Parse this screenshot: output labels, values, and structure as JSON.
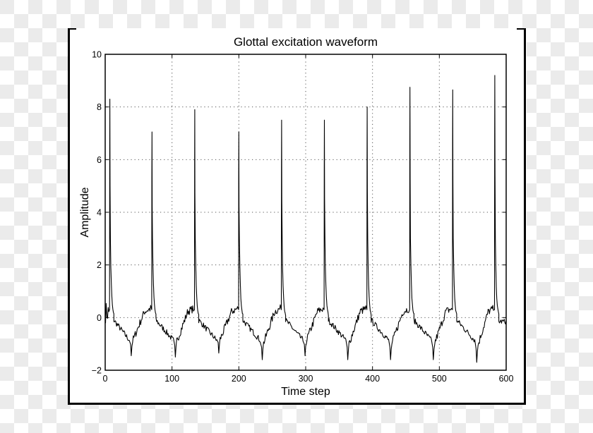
{
  "chart_data": {
    "type": "line",
    "title": "Glottal excitation waveform",
    "xlabel": "Time step",
    "ylabel": "Amplitude",
    "xlim": [
      0,
      600
    ],
    "ylim": [
      -2,
      10
    ],
    "xticks": [
      0,
      100,
      200,
      300,
      400,
      500,
      600
    ],
    "yticks": [
      -2,
      0,
      2,
      4,
      6,
      8,
      10
    ],
    "xtick_labels": [
      "0",
      "100",
      "200",
      "300",
      "400",
      "500",
      "600"
    ],
    "ytick_labels": [
      "−2",
      "0",
      "2",
      "4",
      "6",
      "8",
      "10"
    ],
    "grid": true,
    "grid_style": "dotted",
    "legend": null,
    "line_color": "#000000",
    "series": [
      {
        "name": "glottal excitation",
        "description": "Periodic pulse train: sharp positive spikes followed by decay below zero, a negative trough, then a noisy ramp back toward zero",
        "pulse_period_approx": 64,
        "peaks": [
          {
            "x": 7,
            "y": 8.3
          },
          {
            "x": 70,
            "y": 7.05
          },
          {
            "x": 134,
            "y": 7.9
          },
          {
            "x": 200,
            "y": 7.05
          },
          {
            "x": 264,
            "y": 7.5
          },
          {
            "x": 328,
            "y": 7.5
          },
          {
            "x": 392,
            "y": 8.0
          },
          {
            "x": 456,
            "y": 8.75
          },
          {
            "x": 520,
            "y": 8.65
          },
          {
            "x": 583,
            "y": 9.2
          }
        ],
        "troughs": [
          {
            "x": 39,
            "y": -1.45
          },
          {
            "x": 105,
            "y": -1.5
          },
          {
            "x": 170,
            "y": -1.35
          },
          {
            "x": 235,
            "y": -1.6
          },
          {
            "x": 299,
            "y": -1.45
          },
          {
            "x": 363,
            "y": -1.6
          },
          {
            "x": 427,
            "y": -1.6
          },
          {
            "x": 491,
            "y": -1.6
          },
          {
            "x": 556,
            "y": -1.7
          }
        ],
        "start": {
          "x": 0,
          "y": 0.3
        },
        "end": {
          "x": 600,
          "y": -0.2
        }
      }
    ]
  }
}
